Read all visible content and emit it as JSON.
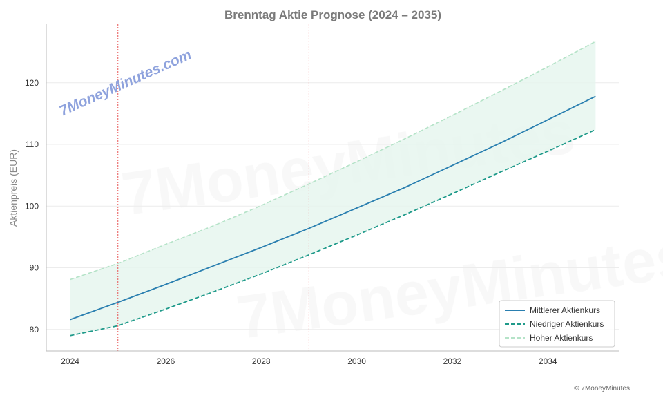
{
  "chart_data": {
    "type": "line",
    "title": "Brenntag Aktie Prognose (2024 – 2035)",
    "xlabel": "",
    "ylabel": "Aktienpreis (EUR)",
    "x": [
      2024,
      2025,
      2026,
      2027,
      2028,
      2029,
      2030,
      2031,
      2032,
      2033,
      2034,
      2035
    ],
    "xlim": [
      2023.5,
      2035.5
    ],
    "ylim": [
      76.5,
      129.5
    ],
    "x_ticks": [
      2024,
      2026,
      2028,
      2030,
      2032,
      2034
    ],
    "y_ticks": [
      80,
      90,
      100,
      110,
      120
    ],
    "grid": "horizontal",
    "legend_position": "bottom-right",
    "vertical_markers": [
      2025,
      2029
    ],
    "series": [
      {
        "name": "Mittlerer Aktienkurs",
        "style": "solid",
        "color": "#2a7fb0",
        "values": [
          81.6,
          84.4,
          87.3,
          90.3,
          93.3,
          96.4,
          99.7,
          103.0,
          106.6,
          110.2,
          114.0,
          117.8
        ]
      },
      {
        "name": "Niedriger Aktienkurs",
        "style": "dashed",
        "color": "#1f9a8a",
        "values": [
          79.0,
          80.6,
          83.3,
          86.1,
          89.0,
          92.1,
          95.3,
          98.6,
          102.0,
          105.5,
          108.9,
          112.4
        ]
      },
      {
        "name": "Hoher Aktienkurs",
        "style": "dashed",
        "color": "#b5e3c8",
        "values": [
          88.1,
          90.7,
          93.8,
          96.8,
          100.1,
          103.6,
          107.2,
          110.9,
          114.7,
          118.6,
          122.6,
          126.7
        ]
      }
    ],
    "band_fill_color": "#e6f6ee",
    "marker_color": "#e85555"
  },
  "watermark": "7MoneyMinutes.com",
  "background_mark": "7MoneyMinutes",
  "copyright": "© 7MoneyMinutes"
}
